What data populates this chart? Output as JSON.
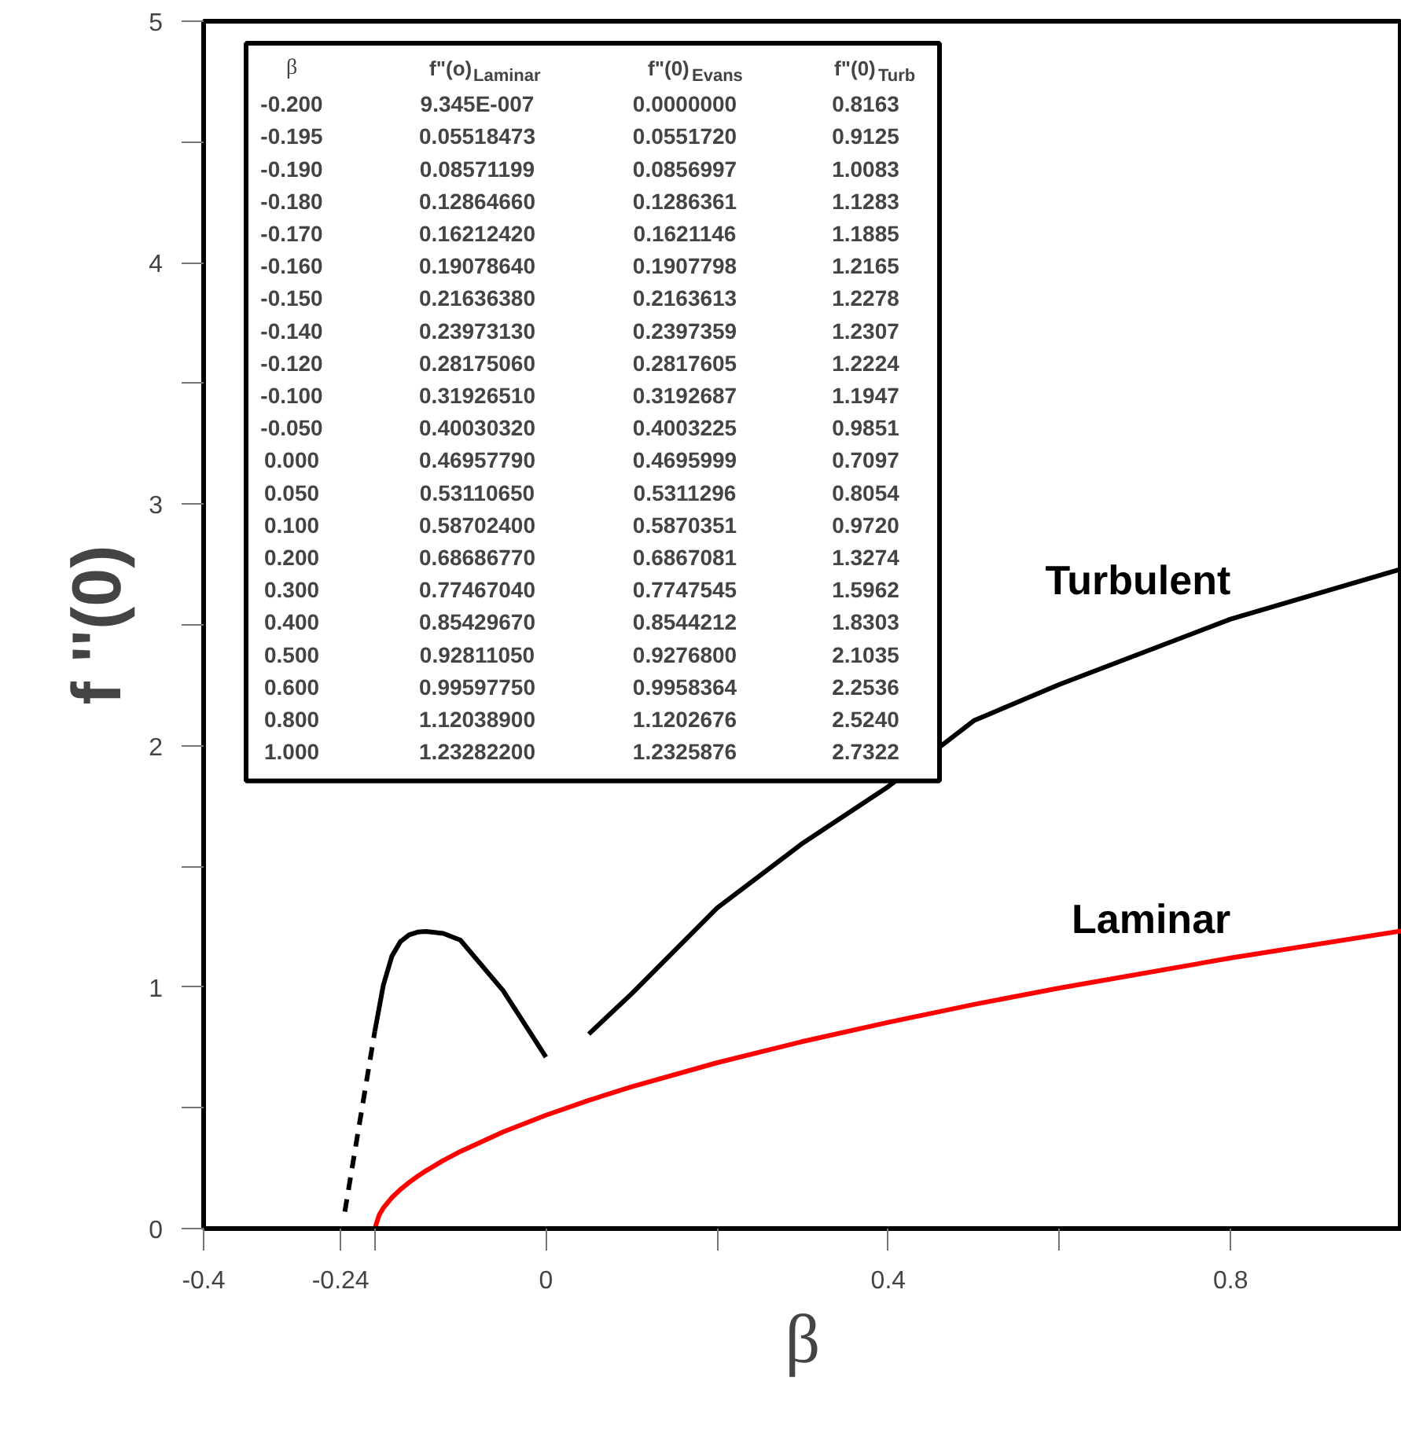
{
  "chart_data": {
    "type": "line",
    "xlabel": "β",
    "ylabel": "f ''(0)",
    "xlim": [
      -0.4,
      1.0
    ],
    "ylim": [
      0,
      5
    ],
    "xticks": [
      -0.4,
      -0.24,
      {
        "value": -0.2,
        "label": null
      },
      0,
      {
        "value": 0.2,
        "label": null
      },
      0.4,
      {
        "value": 0.6,
        "label": null
      },
      0.8
    ],
    "yticks": [
      0,
      {
        "value": 0.5,
        "label": null
      },
      1,
      {
        "value": 1.5,
        "label": null
      },
      2,
      {
        "value": 2.5,
        "label": null
      },
      3,
      {
        "value": 3.5,
        "label": null
      },
      4,
      {
        "value": 4.5,
        "label": null
      },
      5
    ],
    "grid": false,
    "series": [
      {
        "name": "Laminar",
        "color": "#ff0000",
        "x": [
          -0.2,
          -0.195,
          -0.19,
          -0.18,
          -0.17,
          -0.16,
          -0.15,
          -0.14,
          -0.12,
          -0.1,
          -0.05,
          0,
          0.05,
          0.1,
          0.2,
          0.3,
          0.4,
          0.5,
          0.6,
          0.8,
          1.0
        ],
        "values": [
          9.345e-07,
          0.05518473,
          0.08571199,
          0.1286466,
          0.1621242,
          0.1907864,
          0.2163638,
          0.2397313,
          0.2817506,
          0.3192651,
          0.4003032,
          0.4695779,
          0.5311065,
          0.587024,
          0.6868677,
          0.7746704,
          0.8542967,
          0.9281105,
          0.9959775,
          1.120389,
          1.232822
        ]
      },
      {
        "color": "#000000",
        "line_style": "dashed",
        "x": [
          -0.235,
          -0.2
        ],
        "values": [
          0.07,
          0.8163
        ]
      },
      {
        "color": "#000000",
        "x": [
          -0.2,
          -0.195,
          -0.19,
          -0.18,
          -0.17,
          -0.16,
          -0.15,
          -0.14,
          -0.12,
          -0.1,
          -0.05,
          0
        ],
        "values": [
          0.8163,
          0.9125,
          1.0083,
          1.1283,
          1.1885,
          1.2165,
          1.2278,
          1.2307,
          1.2224,
          1.1947,
          0.9851,
          0.7097
        ]
      },
      {
        "name": "Turbulent",
        "color": "#000000",
        "x": [
          0.05,
          0.1,
          0.2,
          0.3,
          0.4,
          0.5,
          0.6,
          0.8,
          1.0
        ],
        "values": [
          0.8054,
          0.972,
          1.3274,
          1.5962,
          1.8303,
          2.1035,
          2.2536,
          2.524,
          2.7322
        ]
      }
    ],
    "annotations": [
      "β\tf\"(o)$_{Laminar}$\tf\"(0)$_{Evans}$\tf\"(0)$_{Turb}$",
      "-0.200\t9.345E-007\t0.0000000\t0.8163",
      "-0.195\t0.05518473\t0.0551720\t0.9125",
      "-0.190\t0.08571199\t0.0856997\t1.0083",
      "-0.180\t0.12864660\t0.1286361\t1.1283",
      "-0.170\t0.16212420\t0.1621146\t1.1885",
      "-0.160\t0.19078640\t0.1907798\t1.2165",
      "-0.150\t0.21636380\t0.2163613\t1.2278",
      "-0.140\t0.23973130\t0.2397359\t1.2307",
      "-0.120\t0.28175060\t0.2817605\t1.2224",
      "-0.100\t0.31926510\t0.3192687\t1.1947",
      "-0.050\t0.40030320\t0.4003225\t0.9851",
      "0.000\t0.46957790\t0.4695999\t0.7097",
      "0.050\t0.53110650\t0.5311296\t0.8054",
      "0.100\t0.58702400\t0.5870351\t0.9720",
      "0.200\t0.68686770\t0.6867081\t1.3274",
      "0.300\t0.77467040\t0.7747545\t1.5962",
      "0.400\t0.85429670\t0.8544212\t1.8303",
      "0.500\t0.92811050\t0.9276800\t2.1035",
      "0.600\t0.99597750\t0.9958364\t2.2536",
      "0.800\t1.12038900\t1.1202676\t2.5240",
      "1.000\t1.23282200\t1.2325876\t2.7322"
    ]
  }
}
